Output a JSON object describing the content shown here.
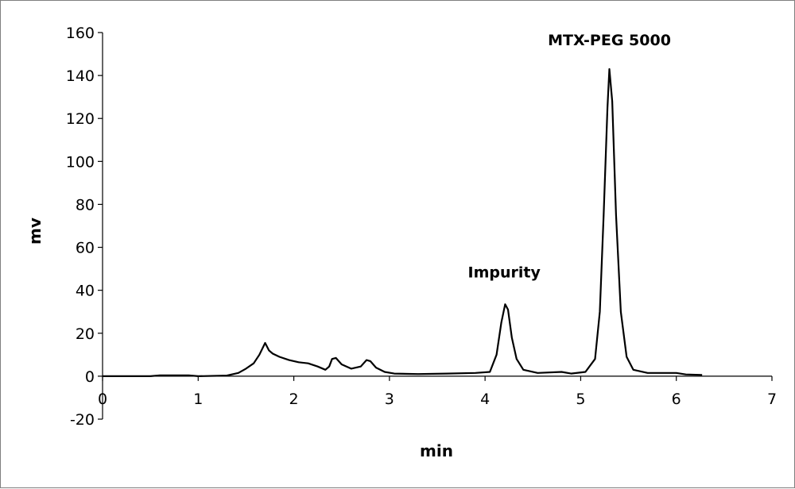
{
  "chart_data": {
    "type": "line",
    "xlabel": "min",
    "ylabel": "mv",
    "xlim": [
      0,
      7
    ],
    "ylim": [
      -20,
      160
    ],
    "x_ticks": [
      "0",
      "1",
      "2",
      "3",
      "4",
      "5",
      "6",
      "7"
    ],
    "y_ticks": [
      "-20",
      "0",
      "20",
      "40",
      "60",
      "80",
      "100",
      "120",
      "140",
      "160"
    ],
    "grid": false,
    "annotations": [
      {
        "text": "Impurity",
        "x": 4.2,
        "y": 46
      },
      {
        "text": "MTX-PEG 5000",
        "x": 5.3,
        "y": 154
      }
    ],
    "series": [
      {
        "points": [
          [
            0,
            0
          ],
          [
            0.5,
            0
          ],
          [
            0.6,
            0.4
          ],
          [
            0.9,
            0.4
          ],
          [
            1.0,
            0
          ],
          [
            1.3,
            0.3
          ],
          [
            1.42,
            1.5
          ],
          [
            1.5,
            3.5
          ],
          [
            1.58,
            6
          ],
          [
            1.64,
            10
          ],
          [
            1.7,
            15.5
          ],
          [
            1.74,
            12
          ],
          [
            1.78,
            10.5
          ],
          [
            1.85,
            9
          ],
          [
            1.95,
            7.5
          ],
          [
            2.05,
            6.5
          ],
          [
            2.15,
            6
          ],
          [
            2.25,
            4.5
          ],
          [
            2.33,
            3
          ],
          [
            2.37,
            4.5
          ],
          [
            2.4,
            8
          ],
          [
            2.44,
            8.5
          ],
          [
            2.5,
            5.5
          ],
          [
            2.6,
            3.5
          ],
          [
            2.7,
            4.5
          ],
          [
            2.76,
            7.5
          ],
          [
            2.8,
            7
          ],
          [
            2.86,
            4
          ],
          [
            2.95,
            2
          ],
          [
            3.05,
            1.2
          ],
          [
            3.3,
            1
          ],
          [
            3.6,
            1.2
          ],
          [
            3.9,
            1.5
          ],
          [
            4.05,
            2
          ],
          [
            4.12,
            10
          ],
          [
            4.17,
            25
          ],
          [
            4.21,
            33.5
          ],
          [
            4.24,
            31
          ],
          [
            4.28,
            18
          ],
          [
            4.33,
            8
          ],
          [
            4.4,
            3
          ],
          [
            4.55,
            1.5
          ],
          [
            4.8,
            2
          ],
          [
            4.9,
            1.2
          ],
          [
            5.05,
            2
          ],
          [
            5.15,
            8
          ],
          [
            5.2,
            30
          ],
          [
            5.24,
            75
          ],
          [
            5.28,
            125
          ],
          [
            5.3,
            143
          ],
          [
            5.33,
            128
          ],
          [
            5.37,
            75
          ],
          [
            5.42,
            30
          ],
          [
            5.48,
            9
          ],
          [
            5.55,
            3
          ],
          [
            5.7,
            1.5
          ],
          [
            6.0,
            1.5
          ],
          [
            6.1,
            0.8
          ],
          [
            6.27,
            0.6
          ]
        ]
      }
    ]
  }
}
